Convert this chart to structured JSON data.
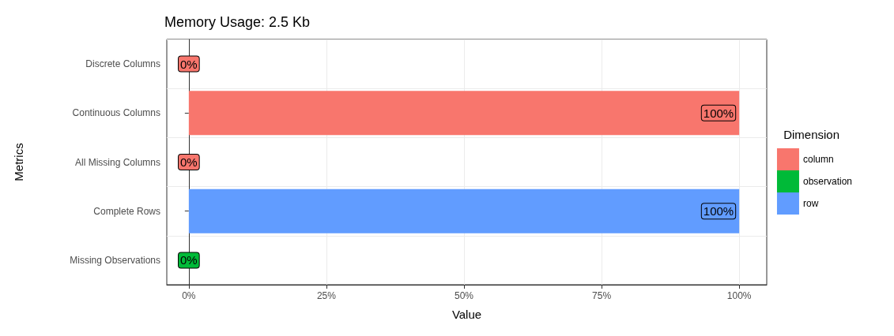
{
  "chart_data": {
    "type": "bar",
    "orientation": "horizontal",
    "stacked": true,
    "title": "Memory Usage: 2.5 Kb",
    "xlabel": "Value",
    "ylabel": "Metrics",
    "legend_title": "Dimension",
    "legend": "right",
    "grid": true,
    "categories": [
      "Discrete Columns",
      "Continuous Columns",
      "All Missing Columns",
      "Complete Rows",
      "Missing Observations"
    ],
    "xlim": [
      -4,
      105
    ],
    "xticks": [
      {
        "value": 0,
        "label": "0%"
      },
      {
        "value": 25,
        "label": "25%"
      },
      {
        "value": 50,
        "label": "50%"
      },
      {
        "value": 75,
        "label": "75%"
      },
      {
        "value": 100,
        "label": "100%"
      }
    ],
    "series": [
      {
        "name": "column",
        "color": "#f8766d",
        "values": [
          0,
          100,
          0,
          null,
          null
        ],
        "value_labels": [
          "0%",
          "100%",
          "0%",
          null,
          null
        ]
      },
      {
        "name": "observation",
        "color": "#00ba38",
        "values": [
          null,
          null,
          null,
          null,
          0
        ],
        "value_labels": [
          null,
          null,
          null,
          null,
          "0%"
        ]
      },
      {
        "name": "row",
        "color": "#619cff",
        "values": [
          null,
          null,
          null,
          100,
          null
        ],
        "value_labels": [
          null,
          null,
          null,
          "100%",
          null
        ]
      }
    ]
  }
}
